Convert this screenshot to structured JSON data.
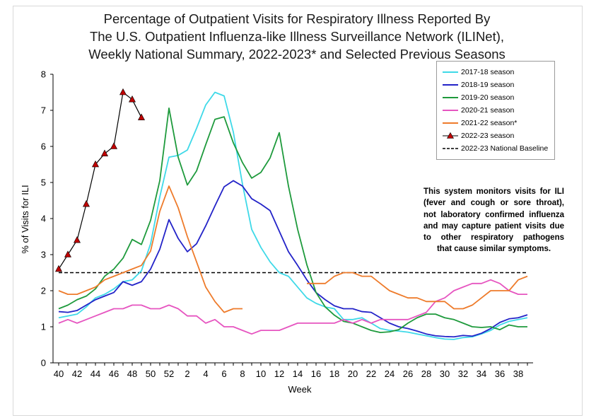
{
  "chart_data": {
    "type": "line",
    "title_lines": [
      "Percentage of Outpatient Visits for Respiratory Illness Reported By",
      "The U.S. Outpatient Influenza-like Illness Surveillance Network (ILINet),",
      "Weekly National Summary, 2022-2023* and Selected Previous Seasons"
    ],
    "xlabel": "Week",
    "ylabel": "% of Visits for ILI",
    "ylim": [
      0,
      8
    ],
    "yticks": [
      "0",
      "1",
      "2",
      "3",
      "4",
      "5",
      "6",
      "7",
      "8"
    ],
    "weeks": [
      40,
      41,
      42,
      43,
      44,
      45,
      46,
      47,
      48,
      49,
      50,
      51,
      52,
      1,
      2,
      3,
      4,
      5,
      6,
      7,
      8,
      9,
      10,
      11,
      12,
      13,
      14,
      15,
      16,
      17,
      18,
      19,
      20,
      21,
      22,
      23,
      24,
      25,
      26,
      27,
      28,
      29,
      30,
      31,
      32,
      33,
      34,
      35,
      36,
      37,
      38,
      39
    ],
    "xtick_labels": [
      "40",
      "42",
      "44",
      "46",
      "48",
      "50",
      "52",
      "2",
      "4",
      "6",
      "8",
      "10",
      "12",
      "14",
      "16",
      "18",
      "20",
      "22",
      "24",
      "26",
      "28",
      "30",
      "32",
      "34",
      "36",
      "38"
    ],
    "series": [
      {
        "name": "2017-18 season",
        "color": "#3fd9e8",
        "marker": "none",
        "values": [
          1.25,
          1.3,
          1.35,
          1.55,
          1.8,
          1.9,
          2.05,
          2.25,
          2.3,
          2.55,
          3.3,
          4.6,
          5.7,
          5.75,
          5.9,
          6.5,
          7.15,
          7.5,
          7.4,
          6.4,
          4.95,
          3.7,
          3.2,
          2.8,
          2.5,
          2.4,
          2.1,
          1.8,
          1.65,
          1.55,
          1.5,
          1.2,
          1.2,
          1.25,
          1.1,
          0.95,
          0.9,
          0.88,
          0.85,
          0.8,
          0.75,
          0.7,
          0.66,
          0.65,
          0.7,
          0.72,
          0.8,
          0.9,
          1.05,
          1.15,
          1.2,
          1.25
        ]
      },
      {
        "name": "2018-19 season",
        "color": "#2323c8",
        "marker": "none",
        "values": [
          1.42,
          1.4,
          1.45,
          1.6,
          1.75,
          1.85,
          1.95,
          2.25,
          2.15,
          2.25,
          2.6,
          3.15,
          3.97,
          3.45,
          3.08,
          3.3,
          3.8,
          4.35,
          4.88,
          5.05,
          4.9,
          4.55,
          4.4,
          4.22,
          3.65,
          3.08,
          2.7,
          2.3,
          1.95,
          1.75,
          1.58,
          1.5,
          1.5,
          1.42,
          1.4,
          1.25,
          1.1,
          1.0,
          0.95,
          0.88,
          0.8,
          0.75,
          0.73,
          0.72,
          0.76,
          0.74,
          0.82,
          0.95,
          1.12,
          1.22,
          1.25,
          1.33
        ]
      },
      {
        "name": "2019-20 season",
        "color": "#1e9a3c",
        "marker": "none",
        "values": [
          1.5,
          1.6,
          1.75,
          1.85,
          2.05,
          2.4,
          2.6,
          2.9,
          3.42,
          3.28,
          3.95,
          5.05,
          7.06,
          5.7,
          4.93,
          5.32,
          6.05,
          6.75,
          6.82,
          6.1,
          5.55,
          5.12,
          5.28,
          5.68,
          6.38,
          4.9,
          3.7,
          2.72,
          1.95,
          1.55,
          1.32,
          1.15,
          1.1,
          1.0,
          0.9,
          0.84,
          0.86,
          0.92,
          1.1,
          1.25,
          1.35,
          1.35,
          1.25,
          1.2,
          1.1,
          1.0,
          0.98,
          1.0,
          0.92,
          1.05,
          1.0,
          1.0
        ]
      },
      {
        "name": "2020-21 season",
        "color": "#e655c0",
        "marker": "none",
        "values": [
          1.1,
          1.2,
          1.1,
          1.2,
          1.3,
          1.4,
          1.5,
          1.5,
          1.6,
          1.6,
          1.5,
          1.5,
          1.6,
          1.5,
          1.3,
          1.3,
          1.1,
          1.2,
          1.0,
          1.0,
          0.9,
          0.8,
          0.9,
          0.9,
          0.9,
          1.0,
          1.1,
          1.1,
          1.1,
          1.1,
          1.1,
          1.2,
          1.1,
          1.2,
          1.1,
          1.2,
          1.2,
          1.2,
          1.2,
          1.3,
          1.4,
          1.7,
          1.8,
          2.0,
          2.1,
          2.2,
          2.2,
          2.3,
          2.2,
          2.0,
          1.9,
          1.9
        ]
      },
      {
        "name": "2021-22 season*",
        "color": "#ee7b2b",
        "marker": "none",
        "values": [
          2.0,
          1.9,
          1.9,
          2.0,
          2.1,
          2.3,
          2.4,
          2.5,
          2.6,
          2.7,
          3.1,
          4.2,
          4.9,
          4.3,
          3.5,
          2.8,
          2.1,
          1.7,
          1.4,
          1.5,
          1.5,
          null,
          null,
          null,
          null,
          null,
          null,
          2.2,
          2.2,
          2.2,
          2.4,
          2.5,
          2.5,
          2.4,
          2.4,
          2.2,
          2.0,
          1.9,
          1.8,
          1.8,
          1.7,
          1.7,
          1.7,
          1.5,
          1.5,
          1.6,
          1.8,
          2.0,
          2.0,
          2.0,
          2.3,
          2.4
        ]
      },
      {
        "name": "2022-23 season",
        "color": "#000000",
        "marker": "triangle",
        "marker_color": "#c00000",
        "values": [
          2.6,
          3.0,
          3.4,
          4.4,
          5.5,
          5.8,
          6.0,
          7.5,
          7.3,
          6.8
        ]
      }
    ],
    "baseline": {
      "name": "2022-23 National Baseline",
      "value": 2.5,
      "style": "dashed",
      "color": "#000000"
    },
    "annotation": {
      "lines": [
        "This system monitors visits for ILI",
        "(fever and cough or sore throat),",
        "not laboratory confirmed influenza",
        "and may capture patient visits due",
        "to other respiratory pathogens",
        "that cause similar symptoms."
      ]
    },
    "legend_position": "top-right",
    "grid": false
  }
}
